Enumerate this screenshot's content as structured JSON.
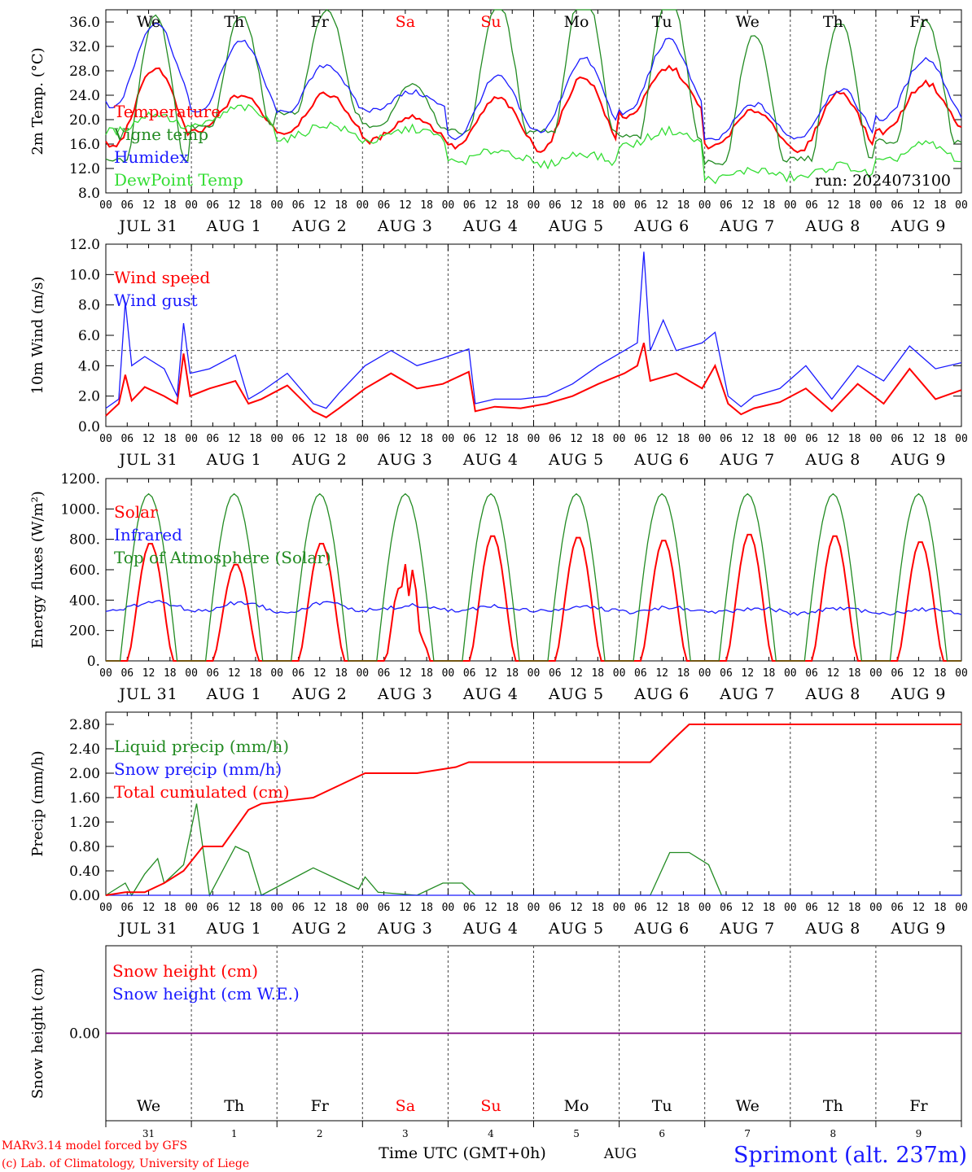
{
  "run_label": "run: 2024073100",
  "footer": {
    "model_credit": "MARv3.14 model forced by GFS",
    "lab_credit": "(c) Lab. of Climatology, University of Liege",
    "xaxis_title": "Time UTC (GMT+0h)",
    "month_label": "AUG",
    "station": "Sprimont (alt. 237m)"
  },
  "colors": {
    "red": "#ff0000",
    "green": "#228b22",
    "blue": "#1a1aff",
    "lightgreen": "#33dd33",
    "purple": "#800080",
    "grid": "#555555"
  },
  "days": {
    "weekday_labels": [
      "We",
      "Th",
      "Fr",
      "Sa",
      "Su",
      "Mo",
      "Tu",
      "We",
      "Th",
      "Fr"
    ],
    "weekend_indices": [
      3,
      4
    ],
    "date_labels": [
      "JUL 31",
      "AUG 1",
      "AUG 2",
      "AUG 3",
      "AUG 4",
      "AUG 5",
      "AUG 6",
      "AUG 7",
      "AUG 8",
      "AUG 9"
    ],
    "day_numbers": [
      "31",
      "1",
      "2",
      "3",
      "4",
      "5",
      "6",
      "7",
      "8",
      "9"
    ],
    "hour_ticks": [
      "00",
      "06",
      "12",
      "18"
    ],
    "final_tick": "00"
  },
  "chart_data": [
    {
      "id": "temp",
      "type": "line",
      "ylabel": "2m Temp. (°C)",
      "ylim": [
        8,
        38
      ],
      "yticks": [
        "8.0",
        "12.0",
        "16.0",
        "20.0",
        "24.0",
        "28.0",
        "32.0",
        "36.0"
      ],
      "x_unit": "hours since 00 UTC JUL 31",
      "series": [
        {
          "name": "Temperature",
          "color": "red",
          "amps": [
            6.5,
            3.0,
            3.2,
            2.0,
            4.0,
            6.0,
            4.0,
            3.0,
            5.0,
            4.0
          ],
          "means": [
            22.0,
            21.0,
            21.0,
            18.5,
            19.5,
            21.0,
            24.5,
            18.5,
            19.5,
            22.0
          ]
        },
        {
          "name": "Vigne temp",
          "color": "green",
          "amps": [
            17.0,
            13.0,
            12.0,
            5.0,
            15.0,
            17.0,
            17.0,
            15.0,
            16.0,
            14.0
          ],
          "means": [
            20.0,
            24.0,
            26.0,
            21.0,
            24.0,
            25.0,
            24.0,
            19.0,
            20.0,
            22.0
          ]
        },
        {
          "name": "Humidex",
          "color": "blue",
          "amps": [
            7.0,
            6.0,
            4.0,
            1.5,
            5.0,
            6.0,
            6.0,
            3.0,
            4.0,
            5.0
          ],
          "means": [
            29.0,
            27.0,
            25.0,
            23.0,
            22.0,
            24.0,
            27.0,
            19.5,
            21.0,
            25.0
          ]
        },
        {
          "name": "DewPoint Temp",
          "color": "lightgreen",
          "amps": [
            1.5,
            1.5,
            1.2,
            1.0,
            1.0,
            1.0,
            1.2,
            0.8,
            1.0,
            1.5
          ],
          "means": [
            19.5,
            20.5,
            18.0,
            17.5,
            14.0,
            13.5,
            17.0,
            11.0,
            11.5,
            14.5
          ]
        }
      ]
    },
    {
      "id": "wind",
      "type": "line",
      "ylabel": "10m Wind (m/s)",
      "ylim": [
        0,
        12
      ],
      "yticks": [
        "0.0",
        "2.0",
        "4.0",
        "6.0",
        "8.0",
        "10.0",
        "12.0"
      ],
      "reference_line": 5.0,
      "peak_gust": 11.5,
      "series": [
        {
          "name": "Wind speed",
          "color": "red",
          "points": [
            [
              0,
              0.7
            ],
            [
              4,
              1.5
            ],
            [
              6,
              3.4
            ],
            [
              8,
              1.7
            ],
            [
              12,
              2.6
            ],
            [
              18,
              2.0
            ],
            [
              22,
              1.5
            ],
            [
              24,
              4.8
            ],
            [
              26,
              2.0
            ],
            [
              32,
              2.5
            ],
            [
              40,
              3.0
            ],
            [
              44,
              1.5
            ],
            [
              48,
              1.8
            ],
            [
              56,
              2.7
            ],
            [
              64,
              1.0
            ],
            [
              68,
              0.6
            ],
            [
              72,
              1.2
            ],
            [
              80,
              2.5
            ],
            [
              88,
              3.5
            ],
            [
              96,
              2.5
            ],
            [
              104,
              2.8
            ],
            [
              112,
              3.6
            ],
            [
              114,
              1.0
            ],
            [
              120,
              1.3
            ],
            [
              128,
              1.2
            ],
            [
              136,
              1.5
            ],
            [
              144,
              2.0
            ],
            [
              152,
              2.8
            ],
            [
              160,
              3.5
            ],
            [
              164,
              4.0
            ],
            [
              166,
              5.5
            ],
            [
              168,
              3.0
            ],
            [
              176,
              3.5
            ],
            [
              184,
              2.5
            ],
            [
              188,
              4.0
            ],
            [
              192,
              1.5
            ],
            [
              196,
              0.8
            ],
            [
              200,
              1.2
            ],
            [
              208,
              1.6
            ],
            [
              216,
              2.5
            ],
            [
              224,
              1.0
            ],
            [
              232,
              2.8
            ],
            [
              240,
              1.5
            ],
            [
              248,
              3.8
            ],
            [
              256,
              1.8
            ],
            [
              264,
              2.4
            ]
          ]
        },
        {
          "name": "Wind gust",
          "color": "blue",
          "points": [
            [
              0,
              1.2
            ],
            [
              4,
              1.8
            ],
            [
              6,
              8.2
            ],
            [
              8,
              4.0
            ],
            [
              12,
              4.6
            ],
            [
              18,
              3.8
            ],
            [
              22,
              2.0
            ],
            [
              24,
              6.8
            ],
            [
              26,
              3.5
            ],
            [
              32,
              3.8
            ],
            [
              40,
              4.7
            ],
            [
              44,
              1.8
            ],
            [
              48,
              2.3
            ],
            [
              56,
              3.5
            ],
            [
              64,
              1.5
            ],
            [
              68,
              1.2
            ],
            [
              72,
              2.2
            ],
            [
              80,
              4.0
            ],
            [
              88,
              5.0
            ],
            [
              96,
              4.0
            ],
            [
              104,
              4.5
            ],
            [
              112,
              5.1
            ],
            [
              114,
              1.5
            ],
            [
              120,
              1.8
            ],
            [
              128,
              1.8
            ],
            [
              136,
              2.0
            ],
            [
              144,
              2.8
            ],
            [
              152,
              4.0
            ],
            [
              160,
              5.0
            ],
            [
              164,
              5.5
            ],
            [
              166,
              11.5
            ],
            [
              168,
              5.0
            ],
            [
              172,
              7.0
            ],
            [
              176,
              5.0
            ],
            [
              184,
              5.5
            ],
            [
              188,
              6.2
            ],
            [
              192,
              2.0
            ],
            [
              196,
              1.3
            ],
            [
              200,
              2.0
            ],
            [
              208,
              2.5
            ],
            [
              216,
              4.0
            ],
            [
              224,
              1.8
            ],
            [
              232,
              4.0
            ],
            [
              240,
              3.0
            ],
            [
              248,
              5.3
            ],
            [
              256,
              3.8
            ],
            [
              264,
              4.2
            ]
          ]
        }
      ]
    },
    {
      "id": "energy",
      "type": "line",
      "ylabel": "Energy fluxes (W/m²)",
      "ylim": [
        0,
        1200
      ],
      "yticks": [
        "0.",
        "200.",
        "400.",
        "600.",
        "800.",
        "1000.",
        "1200."
      ],
      "series": [
        {
          "name": "Solar",
          "color": "red",
          "daily_peaks": [
            780,
            640,
            780,
            720,
            830,
            820,
            800,
            840,
            830,
            790
          ]
        },
        {
          "name": "Infrared",
          "color": "blue",
          "level": 360
        },
        {
          "name": "Top of Atmosphere (Solar)",
          "color": "green",
          "daily_peak": 1100
        }
      ]
    },
    {
      "id": "precip",
      "type": "line",
      "ylabel": "Precip (mm/h)",
      "ylim": [
        0,
        3.0
      ],
      "yticks": [
        "0.00",
        "0.40",
        "0.80",
        "1.20",
        "1.60",
        "2.00",
        "2.40",
        "2.80"
      ],
      "series": [
        {
          "name": "Liquid precip (mm/h)",
          "color": "green",
          "points": [
            [
              0,
              0
            ],
            [
              6,
              0.2
            ],
            [
              8,
              0
            ],
            [
              12,
              0.35
            ],
            [
              16,
              0.6
            ],
            [
              18,
              0.2
            ],
            [
              22,
              0.4
            ],
            [
              24,
              0.5
            ],
            [
              28,
              1.5
            ],
            [
              32,
              0
            ],
            [
              40,
              0.8
            ],
            [
              44,
              0.7
            ],
            [
              48,
              0
            ],
            [
              64,
              0.45
            ],
            [
              70,
              0.3
            ],
            [
              78,
              0.1
            ],
            [
              80,
              0.3
            ],
            [
              84,
              0.05
            ],
            [
              96,
              0
            ],
            [
              104,
              0.2
            ],
            [
              110,
              0.2
            ],
            [
              114,
              0
            ],
            [
              168,
              0
            ],
            [
              174,
              0.7
            ],
            [
              180,
              0.7
            ],
            [
              186,
              0.5
            ],
            [
              190,
              0
            ],
            [
              264,
              0
            ]
          ]
        },
        {
          "name": "Snow precip (mm/h)",
          "color": "blue",
          "points": [
            [
              0,
              0
            ],
            [
              264,
              0
            ]
          ]
        },
        {
          "name": "Total cumulated (cm)",
          "color": "red",
          "points": [
            [
              0,
              0
            ],
            [
              6,
              0.05
            ],
            [
              12,
              0.05
            ],
            [
              18,
              0.2
            ],
            [
              24,
              0.4
            ],
            [
              30,
              0.8
            ],
            [
              36,
              0.8
            ],
            [
              44,
              1.4
            ],
            [
              48,
              1.5
            ],
            [
              64,
              1.6
            ],
            [
              72,
              1.8
            ],
            [
              80,
              2.0
            ],
            [
              96,
              2.0
            ],
            [
              108,
              2.1
            ],
            [
              112,
              2.18
            ],
            [
              168,
              2.18
            ],
            [
              176,
              2.6
            ],
            [
              180,
              2.8
            ],
            [
              264,
              2.8
            ]
          ]
        }
      ]
    },
    {
      "id": "snow",
      "type": "line",
      "ylabel": "Snow height (cm)",
      "ylim": [
        -1,
        1
      ],
      "yticks": [
        "0.00"
      ],
      "series": [
        {
          "name": "Snow height (cm)",
          "color": "red",
          "points": [
            [
              0,
              0
            ],
            [
              264,
              0
            ]
          ]
        },
        {
          "name": "Snow height (cm W.E.)",
          "color": "blue",
          "points": [
            [
              0,
              0
            ],
            [
              264,
              0
            ]
          ]
        }
      ]
    }
  ]
}
